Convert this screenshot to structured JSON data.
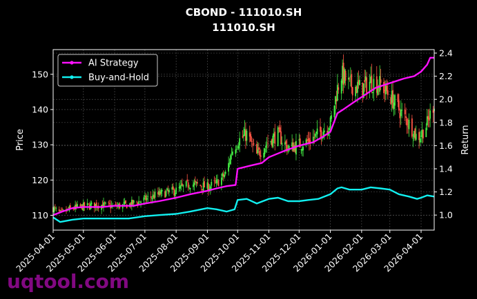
{
  "chart_data": {
    "type": "line",
    "title": "CBOND - 111010.SH",
    "subtitle": "111010.SH",
    "ylabel": "Price",
    "y2label": "Return",
    "ylim": [
      105.8,
      157.0
    ],
    "y2lim": [
      0.87,
      2.43
    ],
    "x_range": [
      "2025-04-01",
      "2026-04-14"
    ],
    "grid": true,
    "legend_position": "top-left",
    "x_ticks": [
      "2025-04-01",
      "2025-05-01",
      "2025-06-01",
      "2025-07-01",
      "2025-08-01",
      "2025-09-01",
      "2025-10-01",
      "2025-11-01",
      "2025-12-01",
      "2026-01-01",
      "2026-02-01",
      "2026-03-01",
      "2026-04-01"
    ],
    "y_ticks": [
      110,
      120,
      130,
      140,
      150
    ],
    "y2_ticks": [
      1.0,
      1.2,
      1.4,
      1.6,
      1.8,
      2.0,
      2.2,
      2.4
    ],
    "candles": {
      "name": "Price",
      "up_color": "#44ee44",
      "down_color": "#ff5544",
      "close_anchors": [
        [
          "2025-04-01",
          112
        ],
        [
          "2025-04-08",
          110.5
        ],
        [
          "2025-04-20",
          112
        ],
        [
          "2025-05-01",
          112.5
        ],
        [
          "2025-05-15",
          113
        ],
        [
          "2025-06-01",
          112.5
        ],
        [
          "2025-06-15",
          113
        ],
        [
          "2025-07-01",
          114.5
        ],
        [
          "2025-07-15",
          116
        ],
        [
          "2025-08-01",
          117
        ],
        [
          "2025-08-15",
          119
        ],
        [
          "2025-09-01",
          118
        ],
        [
          "2025-09-10",
          119
        ],
        [
          "2025-09-20",
          122
        ],
        [
          "2025-09-25",
          128
        ],
        [
          "2025-10-01",
          131
        ],
        [
          "2025-10-10",
          133
        ],
        [
          "2025-10-20",
          127
        ],
        [
          "2025-11-01",
          131
        ],
        [
          "2025-11-10",
          133
        ],
        [
          "2025-11-20",
          129
        ],
        [
          "2025-12-01",
          130
        ],
        [
          "2025-12-10",
          131
        ],
        [
          "2025-12-20",
          133
        ],
        [
          "2026-01-01",
          136
        ],
        [
          "2026-01-08",
          146
        ],
        [
          "2026-01-12",
          150
        ],
        [
          "2026-01-20",
          147
        ],
        [
          "2026-02-01",
          146
        ],
        [
          "2026-02-10",
          148
        ],
        [
          "2026-02-20",
          147
        ],
        [
          "2026-03-01",
          144
        ],
        [
          "2026-03-10",
          140
        ],
        [
          "2026-03-20",
          136
        ],
        [
          "2026-03-28",
          132
        ],
        [
          "2026-04-01",
          133
        ],
        [
          "2026-04-07",
          136
        ],
        [
          "2026-04-14",
          142
        ]
      ]
    },
    "series": [
      {
        "name": "AI Strategy",
        "color": "#ff11ff",
        "axis": "right",
        "points": [
          [
            "2025-04-01",
            1.0
          ],
          [
            "2025-04-10",
            1.03
          ],
          [
            "2025-04-20",
            1.06
          ],
          [
            "2025-05-01",
            1.07
          ],
          [
            "2025-05-20",
            1.07
          ],
          [
            "2025-06-01",
            1.08
          ],
          [
            "2025-06-20",
            1.08
          ],
          [
            "2025-07-01",
            1.1
          ],
          [
            "2025-07-15",
            1.12
          ],
          [
            "2025-08-01",
            1.15
          ],
          [
            "2025-08-15",
            1.18
          ],
          [
            "2025-09-01",
            1.21
          ],
          [
            "2025-09-10",
            1.23
          ],
          [
            "2025-09-20",
            1.25
          ],
          [
            "2025-09-29",
            1.26
          ],
          [
            "2025-10-01",
            1.4
          ],
          [
            "2025-10-15",
            1.43
          ],
          [
            "2025-10-25",
            1.45
          ],
          [
            "2025-11-01",
            1.5
          ],
          [
            "2025-11-15",
            1.55
          ],
          [
            "2025-12-01",
            1.6
          ],
          [
            "2025-12-15",
            1.63
          ],
          [
            "2025-12-25",
            1.68
          ],
          [
            "2026-01-01",
            1.72
          ],
          [
            "2026-01-08",
            1.88
          ],
          [
            "2026-01-15",
            1.92
          ],
          [
            "2026-01-25",
            1.98
          ],
          [
            "2026-02-01",
            2.02
          ],
          [
            "2026-02-15",
            2.1
          ],
          [
            "2026-03-01",
            2.14
          ],
          [
            "2026-03-15",
            2.18
          ],
          [
            "2026-03-25",
            2.2
          ],
          [
            "2026-04-01",
            2.24
          ],
          [
            "2026-04-07",
            2.3
          ],
          [
            "2026-04-10",
            2.36
          ],
          [
            "2026-04-14",
            2.36
          ]
        ]
      },
      {
        "name": "Buy-and-Hold",
        "color": "#11f0f0",
        "axis": "right",
        "points": [
          [
            "2025-04-01",
            0.98
          ],
          [
            "2025-04-08",
            0.94
          ],
          [
            "2025-04-20",
            0.96
          ],
          [
            "2025-05-01",
            0.97
          ],
          [
            "2025-05-15",
            0.97
          ],
          [
            "2025-06-01",
            0.97
          ],
          [
            "2025-06-15",
            0.97
          ],
          [
            "2025-07-01",
            0.99
          ],
          [
            "2025-07-15",
            1.0
          ],
          [
            "2025-08-01",
            1.01
          ],
          [
            "2025-08-15",
            1.03
          ],
          [
            "2025-09-01",
            1.06
          ],
          [
            "2025-09-10",
            1.05
          ],
          [
            "2025-09-20",
            1.03
          ],
          [
            "2025-09-28",
            1.05
          ],
          [
            "2025-10-01",
            1.13
          ],
          [
            "2025-10-10",
            1.14
          ],
          [
            "2025-10-20",
            1.1
          ],
          [
            "2025-11-01",
            1.14
          ],
          [
            "2025-11-10",
            1.15
          ],
          [
            "2025-11-20",
            1.12
          ],
          [
            "2025-12-01",
            1.12
          ],
          [
            "2025-12-10",
            1.13
          ],
          [
            "2025-12-20",
            1.14
          ],
          [
            "2026-01-01",
            1.18
          ],
          [
            "2026-01-08",
            1.23
          ],
          [
            "2026-01-12",
            1.24
          ],
          [
            "2026-01-20",
            1.22
          ],
          [
            "2026-02-01",
            1.22
          ],
          [
            "2026-02-10",
            1.24
          ],
          [
            "2026-02-20",
            1.23
          ],
          [
            "2026-03-01",
            1.22
          ],
          [
            "2026-03-10",
            1.18
          ],
          [
            "2026-03-20",
            1.16
          ],
          [
            "2026-03-28",
            1.14
          ],
          [
            "2026-04-01",
            1.15
          ],
          [
            "2026-04-07",
            1.17
          ],
          [
            "2026-04-14",
            1.16
          ]
        ]
      }
    ]
  },
  "watermark": "uqtool.com",
  "colors": {
    "background": "#000000",
    "grid": "#4a4a4a",
    "axes": "#ffffff"
  }
}
